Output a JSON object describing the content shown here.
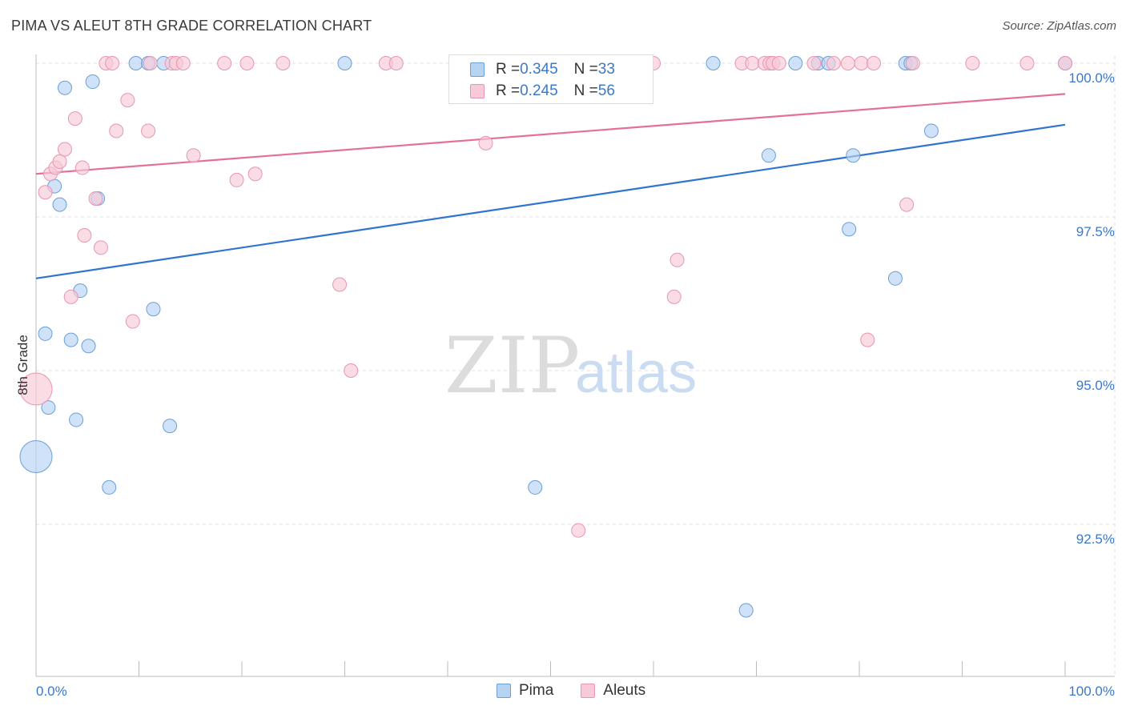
{
  "title": "PIMA VS ALEUT 8TH GRADE CORRELATION CHART",
  "source": "Source: ZipAtlas.com",
  "watermark": {
    "zip": "ZIP",
    "atlas": "atlas"
  },
  "colors": {
    "pima_fill": "#b7d3f2",
    "pima_stroke": "#6a9fd8",
    "pima_line": "#2f74d0",
    "aleut_fill": "#f8c9d7",
    "aleut_stroke": "#e994b0",
    "aleut_line": "#e56f98",
    "axis_label": "#3a78c9",
    "grid": "#e2e2e2"
  },
  "stats": [
    {
      "series": "Pima",
      "r_label": "R = ",
      "r": "0.345",
      "n_label": "N = ",
      "n": "33"
    },
    {
      "series": "Aleuts",
      "r_label": "R = ",
      "r": "0.245",
      "n_label": "N = ",
      "n": "56"
    }
  ],
  "legend": [
    "Pima",
    "Aleuts"
  ],
  "chart_data": {
    "type": "scatter",
    "xlabel": "",
    "ylabel": "8th Grade",
    "xlim": [
      0,
      100
    ],
    "ylim": [
      90.2,
      100.4
    ],
    "x_tick_labels": [
      "0.0%",
      "100.0%"
    ],
    "y_ticks": [
      92.5,
      95.0,
      97.5,
      100.0
    ],
    "y_tick_labels": [
      "92.5%",
      "95.0%",
      "97.5%",
      "100.0%"
    ],
    "grid": true,
    "series": [
      {
        "name": "Pima",
        "trend": {
          "x": [
            0,
            100
          ],
          "y": [
            96.5,
            99.0
          ]
        },
        "points": [
          {
            "x": 0.0,
            "y": 93.6,
            "big": true
          },
          {
            "x": 0.9,
            "y": 95.6
          },
          {
            "x": 1.2,
            "y": 94.4
          },
          {
            "x": 1.8,
            "y": 98.0
          },
          {
            "x": 2.3,
            "y": 97.7
          },
          {
            "x": 2.8,
            "y": 99.6
          },
          {
            "x": 3.4,
            "y": 95.5
          },
          {
            "x": 3.9,
            "y": 94.2
          },
          {
            "x": 4.3,
            "y": 96.3
          },
          {
            "x": 5.1,
            "y": 95.4
          },
          {
            "x": 5.5,
            "y": 99.7
          },
          {
            "x": 6.0,
            "y": 97.8
          },
          {
            "x": 7.1,
            "y": 93.1
          },
          {
            "x": 9.7,
            "y": 100.0
          },
          {
            "x": 10.9,
            "y": 100.0
          },
          {
            "x": 11.4,
            "y": 96.0
          },
          {
            "x": 12.4,
            "y": 100.0
          },
          {
            "x": 13.0,
            "y": 94.1
          },
          {
            "x": 30.0,
            "y": 100.0
          },
          {
            "x": 48.5,
            "y": 93.1
          },
          {
            "x": 65.8,
            "y": 100.0
          },
          {
            "x": 69.0,
            "y": 91.1
          },
          {
            "x": 71.2,
            "y": 98.5
          },
          {
            "x": 73.8,
            "y": 100.0
          },
          {
            "x": 76.0,
            "y": 100.0
          },
          {
            "x": 77.0,
            "y": 100.0
          },
          {
            "x": 79.0,
            "y": 97.3
          },
          {
            "x": 79.4,
            "y": 98.5
          },
          {
            "x": 83.5,
            "y": 96.5
          },
          {
            "x": 84.5,
            "y": 100.0
          },
          {
            "x": 85.0,
            "y": 100.0
          },
          {
            "x": 87.0,
            "y": 98.9
          },
          {
            "x": 100.0,
            "y": 100.0
          }
        ]
      },
      {
        "name": "Aleuts",
        "trend": {
          "x": [
            0,
            100
          ],
          "y": [
            98.2,
            99.5
          ]
        },
        "points": [
          {
            "x": 0.0,
            "y": 94.7,
            "big": true
          },
          {
            "x": 0.9,
            "y": 97.9
          },
          {
            "x": 1.4,
            "y": 98.2
          },
          {
            "x": 1.9,
            "y": 98.3
          },
          {
            "x": 2.3,
            "y": 98.4
          },
          {
            "x": 2.8,
            "y": 98.6
          },
          {
            "x": 3.4,
            "y": 96.2
          },
          {
            "x": 3.8,
            "y": 99.1
          },
          {
            "x": 4.7,
            "y": 97.2
          },
          {
            "x": 4.5,
            "y": 98.3
          },
          {
            "x": 5.8,
            "y": 97.8
          },
          {
            "x": 6.3,
            "y": 97.0
          },
          {
            "x": 6.8,
            "y": 100.0
          },
          {
            "x": 7.4,
            "y": 100.0
          },
          {
            "x": 7.8,
            "y": 98.9
          },
          {
            "x": 8.9,
            "y": 99.4
          },
          {
            "x": 9.4,
            "y": 95.8
          },
          {
            "x": 10.9,
            "y": 98.9
          },
          {
            "x": 11.1,
            "y": 100.0
          },
          {
            "x": 13.2,
            "y": 100.0
          },
          {
            "x": 13.6,
            "y": 100.0
          },
          {
            "x": 14.3,
            "y": 100.0
          },
          {
            "x": 15.3,
            "y": 98.5
          },
          {
            "x": 18.3,
            "y": 100.0
          },
          {
            "x": 19.5,
            "y": 98.1
          },
          {
            "x": 20.5,
            "y": 100.0
          },
          {
            "x": 21.3,
            "y": 98.2
          },
          {
            "x": 24.0,
            "y": 100.0
          },
          {
            "x": 29.5,
            "y": 96.4
          },
          {
            "x": 30.6,
            "y": 95.0
          },
          {
            "x": 34.0,
            "y": 100.0
          },
          {
            "x": 35.0,
            "y": 100.0
          },
          {
            "x": 43.7,
            "y": 98.7
          },
          {
            "x": 47.2,
            "y": 100.0
          },
          {
            "x": 52.7,
            "y": 92.4
          },
          {
            "x": 55.6,
            "y": 100.0
          },
          {
            "x": 60.0,
            "y": 100.0
          },
          {
            "x": 62.0,
            "y": 96.2
          },
          {
            "x": 62.3,
            "y": 96.8
          },
          {
            "x": 68.6,
            "y": 100.0
          },
          {
            "x": 69.6,
            "y": 100.0
          },
          {
            "x": 70.8,
            "y": 100.0
          },
          {
            "x": 71.3,
            "y": 100.0
          },
          {
            "x": 71.6,
            "y": 100.0
          },
          {
            "x": 72.2,
            "y": 100.0
          },
          {
            "x": 75.6,
            "y": 100.0
          },
          {
            "x": 77.5,
            "y": 100.0
          },
          {
            "x": 78.9,
            "y": 100.0
          },
          {
            "x": 80.2,
            "y": 100.0
          },
          {
            "x": 80.8,
            "y": 95.5
          },
          {
            "x": 81.4,
            "y": 100.0
          },
          {
            "x": 84.6,
            "y": 97.7
          },
          {
            "x": 85.2,
            "y": 100.0
          },
          {
            "x": 91.0,
            "y": 100.0
          },
          {
            "x": 96.3,
            "y": 100.0
          },
          {
            "x": 100.0,
            "y": 100.0
          }
        ]
      }
    ]
  }
}
